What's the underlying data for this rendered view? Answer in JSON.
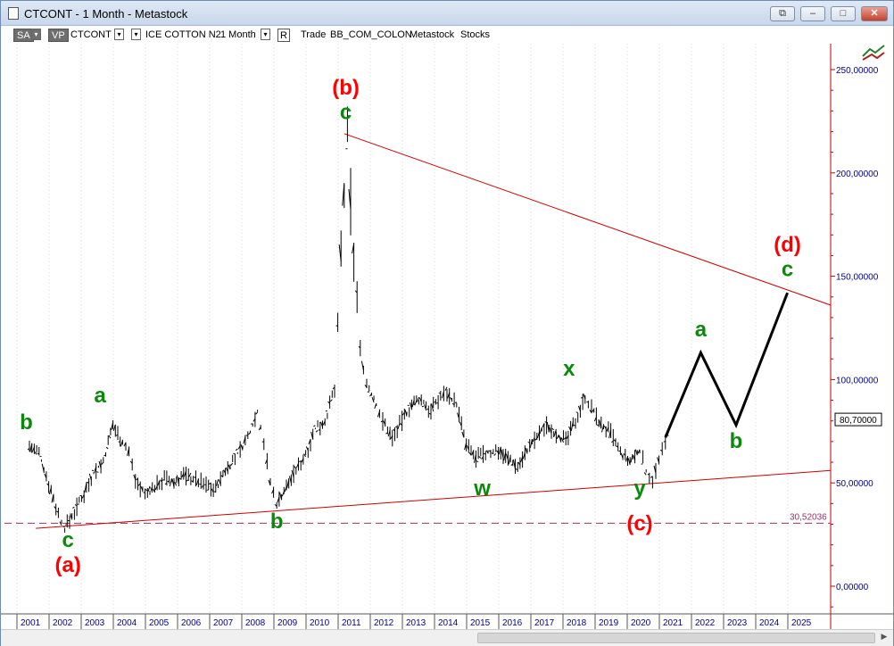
{
  "window": {
    "title": "CTCONT - 1 Month - Metastock",
    "controls": {
      "restore_label": "⧉",
      "minimize_label": "–",
      "maximize_label": "□",
      "close_label": "✕"
    }
  },
  "toolbar": {
    "sa_label": "SA",
    "vp_label": "VP",
    "symbol": "CTCONT",
    "symbol_name": "ICE COTTON N2",
    "period": "1 Month",
    "r_label": "R",
    "trade_label": "Trade",
    "template": "BB_COM_COLON",
    "app_label": "Metastock",
    "category": "Stocks",
    "dropdown_glyph": "▾"
  },
  "chart_data": {
    "type": "bar",
    "title": "",
    "y_ticks": [
      "250,00000",
      "200,00000",
      "150,00000",
      "100,00000",
      "50,00000",
      "0,00000"
    ],
    "ylim": [
      -5,
      265
    ],
    "x_tick_labels": [
      "2001",
      "2002",
      "2003",
      "2004",
      "2005",
      "2006",
      "2007",
      "2008",
      "2009",
      "2010",
      "2011",
      "2012",
      "2013",
      "2014",
      "2015",
      "2016",
      "2017",
      "2018",
      "2019",
      "2020",
      "2021",
      "2022",
      "2023",
      "2024",
      "2025"
    ],
    "last_price": "80,70000",
    "support_level": 30.52036,
    "support_label": "30,52036",
    "trendlines": [
      {
        "name": "upper",
        "from": {
          "year": 2010.8,
          "price": 219
        },
        "to": {
          "year": 2026.3,
          "price": 136
        }
      },
      {
        "name": "lower",
        "from": {
          "year": 2001.2,
          "price": 28
        },
        "to": {
          "year": 2026.3,
          "price": 56
        }
      }
    ],
    "projection": [
      {
        "year": 2020.8,
        "price": 72
      },
      {
        "year": 2021.9,
        "price": 113
      },
      {
        "year": 2023.0,
        "price": 78
      },
      {
        "year": 2024.6,
        "price": 142
      }
    ],
    "series": [
      {
        "values": [
          [
            2001.0,
            68
          ],
          [
            2001.3,
            64
          ],
          [
            2001.6,
            50
          ],
          [
            2001.9,
            35
          ],
          [
            2002.1,
            28
          ],
          [
            2002.4,
            36
          ],
          [
            2002.7,
            45
          ],
          [
            2003.0,
            55
          ],
          [
            2003.3,
            60
          ],
          [
            2003.6,
            78
          ],
          [
            2003.9,
            70
          ],
          [
            2004.1,
            65
          ],
          [
            2004.3,
            52
          ],
          [
            2004.6,
            44
          ],
          [
            2004.9,
            48
          ],
          [
            2005.2,
            52
          ],
          [
            2005.5,
            50
          ],
          [
            2005.8,
            54
          ],
          [
            2006.1,
            52
          ],
          [
            2006.5,
            49
          ],
          [
            2006.8,
            47
          ],
          [
            2007.1,
            56
          ],
          [
            2007.4,
            62
          ],
          [
            2007.8,
            72
          ],
          [
            2008.1,
            85
          ],
          [
            2008.3,
            70
          ],
          [
            2008.5,
            50
          ],
          [
            2008.7,
            40
          ],
          [
            2009.0,
            48
          ],
          [
            2009.3,
            56
          ],
          [
            2009.6,
            64
          ],
          [
            2009.9,
            76
          ],
          [
            2010.2,
            80
          ],
          [
            2010.5,
            95
          ],
          [
            2010.7,
            160
          ],
          [
            2010.9,
            215
          ],
          [
            2011.1,
            160
          ],
          [
            2011.3,
            115
          ],
          [
            2011.5,
            98
          ],
          [
            2011.8,
            88
          ],
          [
            2012.0,
            80
          ],
          [
            2012.3,
            72
          ],
          [
            2012.6,
            80
          ],
          [
            2012.9,
            88
          ],
          [
            2013.2,
            90
          ],
          [
            2013.5,
            85
          ],
          [
            2013.8,
            92
          ],
          [
            2014.0,
            94
          ],
          [
            2014.3,
            88
          ],
          [
            2014.6,
            68
          ],
          [
            2014.9,
            62
          ],
          [
            2015.2,
            64
          ],
          [
            2015.6,
            66
          ],
          [
            2015.9,
            62
          ],
          [
            2016.2,
            58
          ],
          [
            2016.5,
            66
          ],
          [
            2016.8,
            72
          ],
          [
            2017.1,
            78
          ],
          [
            2017.4,
            74
          ],
          [
            2017.7,
            70
          ],
          [
            2018.0,
            80
          ],
          [
            2018.3,
            92
          ],
          [
            2018.5,
            86
          ],
          [
            2018.8,
            78
          ],
          [
            2019.1,
            74
          ],
          [
            2019.4,
            64
          ],
          [
            2019.7,
            60
          ],
          [
            2020.0,
            66
          ],
          [
            2020.2,
            56
          ],
          [
            2020.4,
            52
          ],
          [
            2020.6,
            60
          ],
          [
            2020.8,
            70
          ],
          [
            2021.0,
            80
          ]
        ]
      }
    ],
    "wave_labels": [
      {
        "text": "(b)",
        "year": 2010.85,
        "price": 238,
        "color": "#ff0000"
      },
      {
        "text": "c",
        "year": 2010.85,
        "price": 226,
        "color": "#0a8a0a"
      },
      {
        "text": "(d)",
        "year": 2024.6,
        "price": 162,
        "color": "#ff0000"
      },
      {
        "text": "c",
        "year": 2024.6,
        "price": 150,
        "color": "#0a8a0a"
      },
      {
        "text": "a",
        "year": 2003.2,
        "price": 89,
        "color": "#0a8a0a"
      },
      {
        "text": "b",
        "year": 2000.9,
        "price": 76,
        "color": "#0a8a0a"
      },
      {
        "text": "c",
        "year": 2002.2,
        "price": 19,
        "color": "#0a8a0a"
      },
      {
        "text": "(a)",
        "year": 2002.2,
        "price": 7,
        "color": "#ff0000"
      },
      {
        "text": "b",
        "year": 2008.7,
        "price": 28,
        "color": "#0a8a0a"
      },
      {
        "text": "w",
        "year": 2015.1,
        "price": 44,
        "color": "#0a8a0a"
      },
      {
        "text": "x",
        "year": 2017.8,
        "price": 102,
        "color": "#0a8a0a"
      },
      {
        "text": "y",
        "year": 2020.0,
        "price": 44,
        "color": "#0a8a0a"
      },
      {
        "text": "(c)",
        "year": 2020.0,
        "price": 27,
        "color": "#ff0000"
      },
      {
        "text": "a",
        "year": 2021.9,
        "price": 121,
        "color": "#0a8a0a"
      },
      {
        "text": "b",
        "year": 2023.0,
        "price": 67,
        "color": "#0a8a0a"
      }
    ],
    "colors": {
      "bars": "#000000",
      "trend": "#cc0000",
      "support": "#993366",
      "axis_text": "#00008b",
      "projection": "#000000"
    }
  }
}
